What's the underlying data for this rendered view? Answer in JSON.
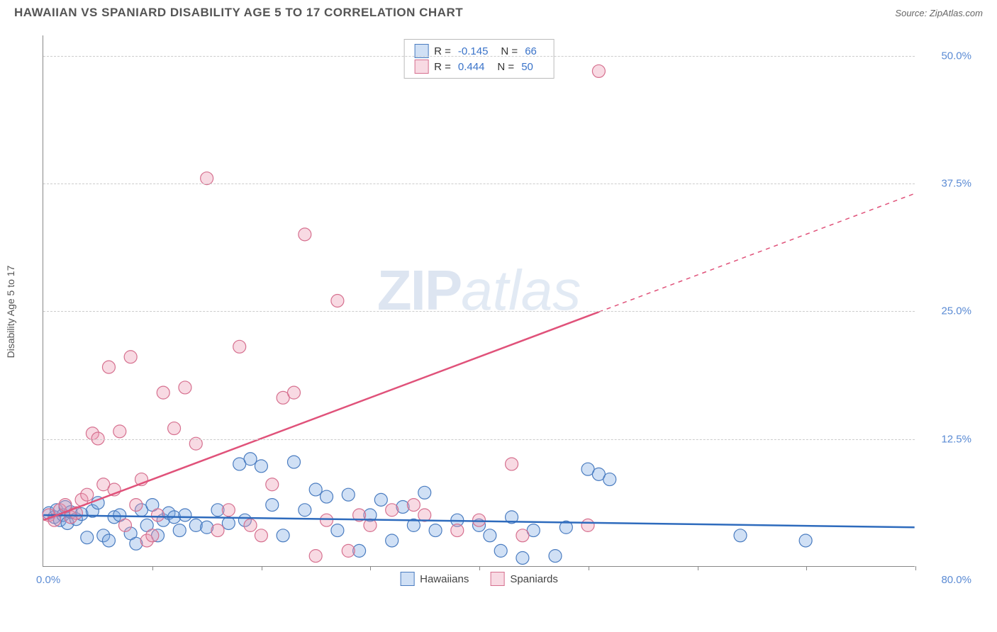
{
  "title": "HAWAIIAN VS SPANIARD DISABILITY AGE 5 TO 17 CORRELATION CHART",
  "source_label": "Source:",
  "source_name": "ZipAtlas.com",
  "y_axis_label": "Disability Age 5 to 17",
  "watermark_a": "ZIP",
  "watermark_b": "atlas",
  "chart": {
    "type": "scatter",
    "background_color": "#ffffff",
    "grid_color": "#cccccc",
    "axis_color": "#888888",
    "label_color": "#5b8bd4",
    "xlim": [
      0,
      80
    ],
    "ylim": [
      0,
      52
    ],
    "x_ticks": [
      0,
      10,
      20,
      30,
      40,
      50,
      60,
      70,
      80
    ],
    "y_ticks": [
      12.5,
      25.0,
      37.5,
      50.0
    ],
    "y_tick_labels": [
      "12.5%",
      "25.0%",
      "37.5%",
      "50.0%"
    ],
    "x_origin_label": "0.0%",
    "x_max_label": "80.0%",
    "marker_radius": 9,
    "marker_stroke_width": 1.2,
    "trend_line_width": 2.5,
    "series": [
      {
        "name": "Hawaiians",
        "fill": "rgba(120,165,225,0.35)",
        "stroke": "#4a7cc0",
        "line_color": "#2e6bbd",
        "R_label": "R =",
        "R": "-0.145",
        "N_label": "N =",
        "N": "66",
        "trend": {
          "x1": 0,
          "y1": 5.0,
          "x2": 80,
          "y2": 3.8,
          "dashed_from_x": null
        },
        "points": [
          [
            0.5,
            5.2
          ],
          [
            1,
            4.8
          ],
          [
            1.2,
            5.5
          ],
          [
            1.5,
            4.5
          ],
          [
            1.8,
            5.0
          ],
          [
            2,
            5.8
          ],
          [
            2.2,
            4.2
          ],
          [
            2.5,
            5.3
          ],
          [
            3,
            4.6
          ],
          [
            3.5,
            5.1
          ],
          [
            4,
            2.8
          ],
          [
            4.5,
            5.4
          ],
          [
            5,
            6.2
          ],
          [
            5.5,
            3.0
          ],
          [
            6,
            2.5
          ],
          [
            6.5,
            4.8
          ],
          [
            7,
            5.0
          ],
          [
            8,
            3.2
          ],
          [
            8.5,
            2.2
          ],
          [
            9,
            5.5
          ],
          [
            9.5,
            4.0
          ],
          [
            10,
            6.0
          ],
          [
            10.5,
            3.0
          ],
          [
            11,
            4.5
          ],
          [
            11.5,
            5.2
          ],
          [
            12,
            4.8
          ],
          [
            12.5,
            3.5
          ],
          [
            13,
            5.0
          ],
          [
            14,
            4.0
          ],
          [
            15,
            3.8
          ],
          [
            16,
            5.5
          ],
          [
            17,
            4.2
          ],
          [
            18,
            10.0
          ],
          [
            18.5,
            4.5
          ],
          [
            19,
            10.5
          ],
          [
            20,
            9.8
          ],
          [
            21,
            6.0
          ],
          [
            22,
            3.0
          ],
          [
            23,
            10.2
          ],
          [
            24,
            5.5
          ],
          [
            25,
            7.5
          ],
          [
            26,
            6.8
          ],
          [
            27,
            3.5
          ],
          [
            28,
            7.0
          ],
          [
            29,
            1.5
          ],
          [
            30,
            5.0
          ],
          [
            31,
            6.5
          ],
          [
            32,
            2.5
          ],
          [
            33,
            5.8
          ],
          [
            34,
            4.0
          ],
          [
            35,
            7.2
          ],
          [
            36,
            3.5
          ],
          [
            38,
            4.5
          ],
          [
            40,
            4.0
          ],
          [
            41,
            3.0
          ],
          [
            42,
            1.5
          ],
          [
            43,
            4.8
          ],
          [
            44,
            0.8
          ],
          [
            45,
            3.5
          ],
          [
            47,
            1.0
          ],
          [
            48,
            3.8
          ],
          [
            50,
            9.5
          ],
          [
            51,
            9.0
          ],
          [
            52,
            8.5
          ],
          [
            64,
            3.0
          ],
          [
            70,
            2.5
          ]
        ]
      },
      {
        "name": "Spaniards",
        "fill": "rgba(235,150,175,0.35)",
        "stroke": "#d6708f",
        "line_color": "#e0527a",
        "R_label": "R =",
        "R": "0.444",
        "N_label": "N =",
        "N": "50",
        "trend": {
          "x1": 0,
          "y1": 4.5,
          "x2": 80,
          "y2": 36.5,
          "dashed_from_x": 51
        },
        "points": [
          [
            0.5,
            5.0
          ],
          [
            1,
            4.5
          ],
          [
            1.5,
            5.5
          ],
          [
            2,
            6.0
          ],
          [
            2.5,
            4.8
          ],
          [
            3,
            5.2
          ],
          [
            3.5,
            6.5
          ],
          [
            4,
            7.0
          ],
          [
            4.5,
            13.0
          ],
          [
            5,
            12.5
          ],
          [
            5.5,
            8.0
          ],
          [
            6,
            19.5
          ],
          [
            6.5,
            7.5
          ],
          [
            7,
            13.2
          ],
          [
            7.5,
            4.0
          ],
          [
            8,
            20.5
          ],
          [
            8.5,
            6.0
          ],
          [
            9,
            8.5
          ],
          [
            9.5,
            2.5
          ],
          [
            10,
            3.0
          ],
          [
            10.5,
            5.0
          ],
          [
            11,
            17.0
          ],
          [
            12,
            13.5
          ],
          [
            13,
            17.5
          ],
          [
            14,
            12.0
          ],
          [
            15,
            38.0
          ],
          [
            16,
            3.5
          ],
          [
            17,
            5.5
          ],
          [
            18,
            21.5
          ],
          [
            19,
            4.0
          ],
          [
            20,
            3.0
          ],
          [
            21,
            8.0
          ],
          [
            22,
            16.5
          ],
          [
            23,
            17.0
          ],
          [
            24,
            32.5
          ],
          [
            25,
            1.0
          ],
          [
            26,
            4.5
          ],
          [
            27,
            26.0
          ],
          [
            28,
            1.5
          ],
          [
            29,
            5.0
          ],
          [
            30,
            4.0
          ],
          [
            32,
            5.5
          ],
          [
            34,
            6.0
          ],
          [
            35,
            5.0
          ],
          [
            38,
            3.5
          ],
          [
            40,
            4.5
          ],
          [
            43,
            10.0
          ],
          [
            44,
            3.0
          ],
          [
            50,
            4.0
          ],
          [
            51,
            48.5
          ]
        ]
      }
    ]
  },
  "bottom_legend": [
    {
      "label": "Hawaiians",
      "fill": "rgba(120,165,225,0.35)",
      "stroke": "#4a7cc0"
    },
    {
      "label": "Spaniards",
      "fill": "rgba(235,150,175,0.35)",
      "stroke": "#d6708f"
    }
  ]
}
